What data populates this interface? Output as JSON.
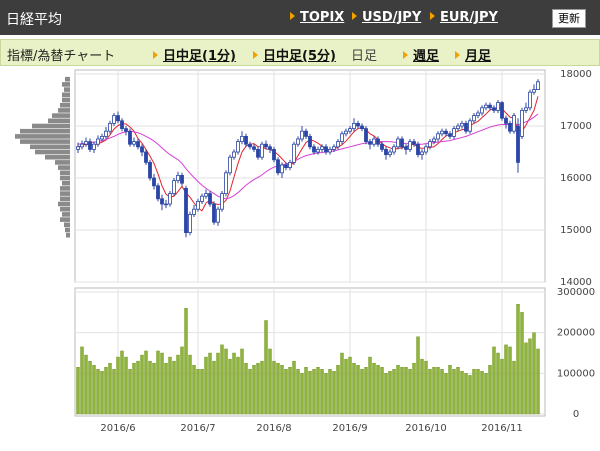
{
  "header": {
    "title": "日経平均",
    "links": [
      "TOPIX",
      "USD/JPY",
      "EUR/JPY"
    ],
    "button": "更新"
  },
  "tabs": {
    "label": "指標/為替チャート",
    "items": [
      "日中足(1分)",
      "日中足(5分)",
      "日足",
      "週足",
      "月足"
    ],
    "selected": 2
  },
  "chart_data": [
    {
      "type": "candlestick",
      "up_color": "#ffffff",
      "down_color": "#2a45a5",
      "edge_color": "#2a45a5",
      "ylim": [
        14000,
        18000
      ],
      "yticks": [
        14000,
        15000,
        16000,
        17000,
        18000
      ],
      "grid": true,
      "categories": [
        null,
        null,
        null,
        null,
        null,
        null,
        null,
        null,
        null,
        null,
        "2016/6",
        null,
        null,
        null,
        null,
        null,
        null,
        null,
        null,
        null,
        null,
        null,
        null,
        null,
        null,
        null,
        null,
        null,
        null,
        null,
        "2016/7",
        null,
        null,
        null,
        null,
        null,
        null,
        null,
        null,
        null,
        null,
        null,
        null,
        null,
        null,
        null,
        null,
        null,
        null,
        "2016/8",
        null,
        null,
        null,
        null,
        null,
        null,
        null,
        null,
        null,
        null,
        null,
        null,
        null,
        null,
        null,
        null,
        null,
        null,
        "2016/9",
        null,
        null,
        null,
        null,
        null,
        null,
        null,
        null,
        null,
        null,
        null,
        null,
        null,
        null,
        null,
        null,
        null,
        null,
        "2016/10",
        null,
        null,
        null,
        null,
        null,
        null,
        null,
        null,
        null,
        null,
        null,
        null,
        null,
        null,
        null,
        null,
        null,
        null,
        "2016/11",
        null,
        null,
        null,
        null,
        null,
        null,
        null,
        null,
        null
      ],
      "open": [
        16550,
        16600,
        16650,
        16700,
        16550,
        16650,
        16750,
        16800,
        16900,
        17050,
        17200,
        17100,
        16950,
        16900,
        16650,
        16700,
        16600,
        16500,
        16300,
        16000,
        15850,
        15600,
        15500,
        15500,
        15700,
        15950,
        16050,
        15800,
        14950,
        15300,
        15400,
        15550,
        15650,
        15700,
        15500,
        15150,
        15400,
        15700,
        16100,
        16400,
        16500,
        16700,
        16800,
        16650,
        16600,
        16550,
        16400,
        16650,
        16600,
        16550,
        16350,
        16100,
        16250,
        16200,
        16300,
        16650,
        16750,
        16900,
        16800,
        16600,
        16500,
        16550,
        16600,
        16500,
        16550,
        16600,
        16700,
        16850,
        16900,
        16950,
        17050,
        17000,
        16950,
        16700,
        16650,
        16750,
        16650,
        16550,
        16450,
        16500,
        16600,
        16750,
        16600,
        16550,
        16700,
        16650,
        16450,
        16500,
        16600,
        16700,
        16750,
        16850,
        16900,
        16850,
        16800,
        16950,
        17000,
        17050,
        16900,
        17100,
        17200,
        17250,
        17350,
        17400,
        17350,
        17300,
        17450,
        17150,
        17050,
        16900,
        17000,
        16800,
        17300,
        17350,
        17650,
        17700
      ],
      "high": [
        16680,
        16720,
        16780,
        16760,
        16700,
        16820,
        16850,
        16980,
        17100,
        17250,
        17280,
        17150,
        17000,
        16950,
        16780,
        16760,
        16650,
        16550,
        16350,
        16080,
        15900,
        15680,
        15580,
        15750,
        16000,
        16120,
        16100,
        15850,
        15350,
        15480,
        15600,
        15700,
        15780,
        15750,
        15550,
        15450,
        15750,
        16150,
        16450,
        16550,
        16750,
        16900,
        16850,
        16700,
        16650,
        16600,
        16700,
        16720,
        16650,
        16600,
        16400,
        16300,
        16300,
        16350,
        16700,
        16800,
        17000,
        16950,
        16850,
        16650,
        16600,
        16650,
        16650,
        16600,
        16650,
        16750,
        16900,
        16950,
        17000,
        17150,
        17100,
        17050,
        17000,
        16750,
        16800,
        16800,
        16700,
        16600,
        16550,
        16650,
        16800,
        16800,
        16650,
        16750,
        16750,
        16700,
        16550,
        16650,
        16750,
        16800,
        16900,
        16950,
        16950,
        16900,
        17000,
        17050,
        17100,
        17100,
        17150,
        17250,
        17300,
        17400,
        17450,
        17450,
        17400,
        17500,
        17480,
        17200,
        17100,
        17250,
        17150,
        17350,
        17450,
        17700,
        17800,
        17900
      ],
      "low": [
        16480,
        16550,
        16600,
        16500,
        16480,
        16600,
        16700,
        16750,
        16850,
        17000,
        17050,
        16900,
        16820,
        16600,
        16600,
        16550,
        16420,
        16250,
        15950,
        15780,
        15550,
        15380,
        15420,
        15450,
        15650,
        15900,
        15850,
        14860,
        14900,
        15250,
        15350,
        15500,
        15600,
        15450,
        15100,
        15080,
        15350,
        15650,
        16050,
        16350,
        16450,
        16650,
        16600,
        16550,
        16500,
        16350,
        16350,
        16550,
        16480,
        16300,
        16050,
        16000,
        16150,
        16150,
        16250,
        16600,
        16700,
        16750,
        16550,
        16450,
        16450,
        16500,
        16450,
        16450,
        16500,
        16550,
        16650,
        16800,
        16850,
        16900,
        16950,
        16900,
        16650,
        16550,
        16600,
        16600,
        16500,
        16350,
        16400,
        16450,
        16550,
        16550,
        16450,
        16500,
        16600,
        16400,
        16350,
        16450,
        16550,
        16650,
        16700,
        16800,
        16800,
        16750,
        16750,
        16900,
        16950,
        16850,
        16850,
        17050,
        17150,
        17200,
        17300,
        17300,
        17250,
        17250,
        17100,
        16950,
        16850,
        16850,
        16100,
        16750,
        17250,
        17300,
        17600,
        17700
      ],
      "close": [
        16600,
        16650,
        16700,
        16550,
        16650,
        16750,
        16800,
        16900,
        17050,
        17200,
        17100,
        16950,
        16900,
        16650,
        16700,
        16600,
        16500,
        16300,
        16000,
        15850,
        15600,
        15500,
        15500,
        15700,
        15950,
        16050,
        15900,
        14950,
        15300,
        15400,
        15550,
        15650,
        15700,
        15500,
        15150,
        15400,
        15700,
        16100,
        16400,
        16500,
        16700,
        16800,
        16650,
        16600,
        16550,
        16400,
        16650,
        16600,
        16550,
        16350,
        16100,
        16250,
        16200,
        16300,
        16650,
        16750,
        16900,
        16800,
        16600,
        16500,
        16550,
        16600,
        16500,
        16550,
        16600,
        16700,
        16850,
        16900,
        16950,
        17050,
        17000,
        16950,
        16700,
        16650,
        16750,
        16650,
        16550,
        16450,
        16500,
        16600,
        16750,
        16600,
        16550,
        16700,
        16650,
        16450,
        16500,
        16600,
        16700,
        16750,
        16850,
        16900,
        16850,
        16800,
        16950,
        17000,
        17050,
        16900,
        17100,
        17200,
        17250,
        17350,
        17400,
        17350,
        17300,
        17450,
        17150,
        17050,
        16900,
        17200,
        16300,
        17300,
        17350,
        17650,
        17700,
        17850
      ],
      "series": [
        {
          "color": "#e3232c",
          "values": [
            16600,
            16620,
            16650,
            16630,
            16630,
            16660,
            16690,
            16730,
            16830,
            16940,
            17010,
            17040,
            17040,
            16980,
            16900,
            16760,
            16670,
            16550,
            16420,
            16280,
            16080,
            15850,
            15690,
            15630,
            15650,
            15740,
            15840,
            15710,
            15630,
            15520,
            15420,
            15370,
            15520,
            15570,
            15510,
            15490,
            15500,
            15570,
            15750,
            16020,
            16280,
            16500,
            16610,
            16650,
            16660,
            16600,
            16600,
            16560,
            16550,
            16510,
            16450,
            16370,
            16290,
            16240,
            16300,
            16430,
            16560,
            16680,
            16740,
            16710,
            16670,
            16610,
            16550,
            16540,
            16560,
            16590,
            16640,
            16710,
            16800,
            16890,
            16950,
            16970,
            16930,
            16850,
            16810,
            16740,
            16660,
            16610,
            16580,
            16550,
            16570,
            16580,
            16600,
            16640,
            16650,
            16590,
            16570,
            16580,
            16590,
            16600,
            16660,
            16740,
            16810,
            16840,
            16870,
            16900,
            16930,
            16940,
            17010,
            17050,
            17090,
            17160,
            17230,
            17310,
            17330,
            17350,
            17330,
            17250,
            17170,
            17150,
            16920,
            16890,
            17020,
            17160,
            17300,
            17570
          ]
        },
        {
          "color": "#d63fd6",
          "values": [
            16650,
            16660,
            16670,
            16680,
            16690,
            16700,
            16720,
            16740,
            16770,
            16800,
            16840,
            16870,
            16890,
            16900,
            16890,
            16870,
            16840,
            16800,
            16760,
            16710,
            16650,
            16580,
            16510,
            16450,
            16400,
            16350,
            16280,
            16180,
            16090,
            16010,
            15930,
            15860,
            15800,
            15750,
            15700,
            15650,
            15620,
            15600,
            15620,
            15660,
            15720,
            15790,
            15860,
            15920,
            15970,
            16010,
            16060,
            16120,
            16170,
            16210,
            16230,
            16250,
            16270,
            16290,
            16320,
            16360,
            16400,
            16430,
            16450,
            16470,
            16480,
            16490,
            16500,
            16510,
            16520,
            16540,
            16560,
            16580,
            16600,
            16620,
            16640,
            16660,
            16670,
            16680,
            16690,
            16700,
            16700,
            16700,
            16700,
            16690,
            16680,
            16670,
            16660,
            16660,
            16650,
            16650,
            16650,
            16660,
            16670,
            16680,
            16690,
            16700,
            16710,
            16720,
            16740,
            16760,
            16780,
            16800,
            16830,
            16860,
            16890,
            16920,
            16950,
            16980,
            17000,
            17020,
            17030,
            17030,
            17030,
            17040,
            17020,
            17050,
            17080,
            17120,
            17170,
            17230
          ]
        }
      ]
    },
    {
      "type": "bar",
      "color": "#8fb43c",
      "ylim": [
        0,
        300000
      ],
      "yticks": [
        0,
        100000,
        200000,
        300000
      ],
      "grid": true,
      "values": [
        115000,
        165000,
        145000,
        130000,
        120000,
        110000,
        105000,
        115000,
        125000,
        110000,
        140000,
        155000,
        140000,
        110000,
        125000,
        130000,
        145000,
        155000,
        130000,
        125000,
        155000,
        150000,
        125000,
        140000,
        130000,
        145000,
        165000,
        260000,
        145000,
        120000,
        110000,
        110000,
        140000,
        150000,
        130000,
        150000,
        170000,
        160000,
        135000,
        150000,
        140000,
        160000,
        125000,
        110000,
        120000,
        125000,
        130000,
        230000,
        160000,
        130000,
        125000,
        120000,
        110000,
        115000,
        130000,
        110000,
        100000,
        115000,
        105000,
        110000,
        115000,
        110000,
        100000,
        110000,
        105000,
        120000,
        150000,
        135000,
        140000,
        125000,
        120000,
        110000,
        115000,
        140000,
        125000,
        120000,
        115000,
        100000,
        105000,
        110000,
        120000,
        115000,
        115000,
        110000,
        125000,
        190000,
        135000,
        130000,
        110000,
        115000,
        115000,
        110000,
        100000,
        120000,
        110000,
        115000,
        105000,
        100000,
        95000,
        110000,
        110000,
        105000,
        100000,
        120000,
        165000,
        150000,
        135000,
        170000,
        165000,
        130000,
        270000,
        250000,
        175000,
        185000,
        200000,
        160000
      ]
    },
    {
      "type": "hbar",
      "color": "#8a8a8a",
      "levels": [
        17900,
        17800,
        17700,
        17600,
        17500,
        17400,
        17300,
        17200,
        17100,
        17000,
        16900,
        16800,
        16700,
        16600,
        16500,
        16400,
        16300,
        16200,
        16100,
        16000,
        15900,
        15800,
        15700,
        15600,
        15500,
        15400,
        15300,
        15200,
        15100,
        15000,
        14900
      ],
      "values": [
        5,
        8,
        6,
        8,
        8,
        10,
        12,
        18,
        22,
        38,
        50,
        55,
        50,
        40,
        35,
        25,
        15,
        12,
        10,
        10,
        8,
        10,
        10,
        10,
        12,
        10,
        8,
        10,
        6,
        5,
        4
      ]
    }
  ]
}
